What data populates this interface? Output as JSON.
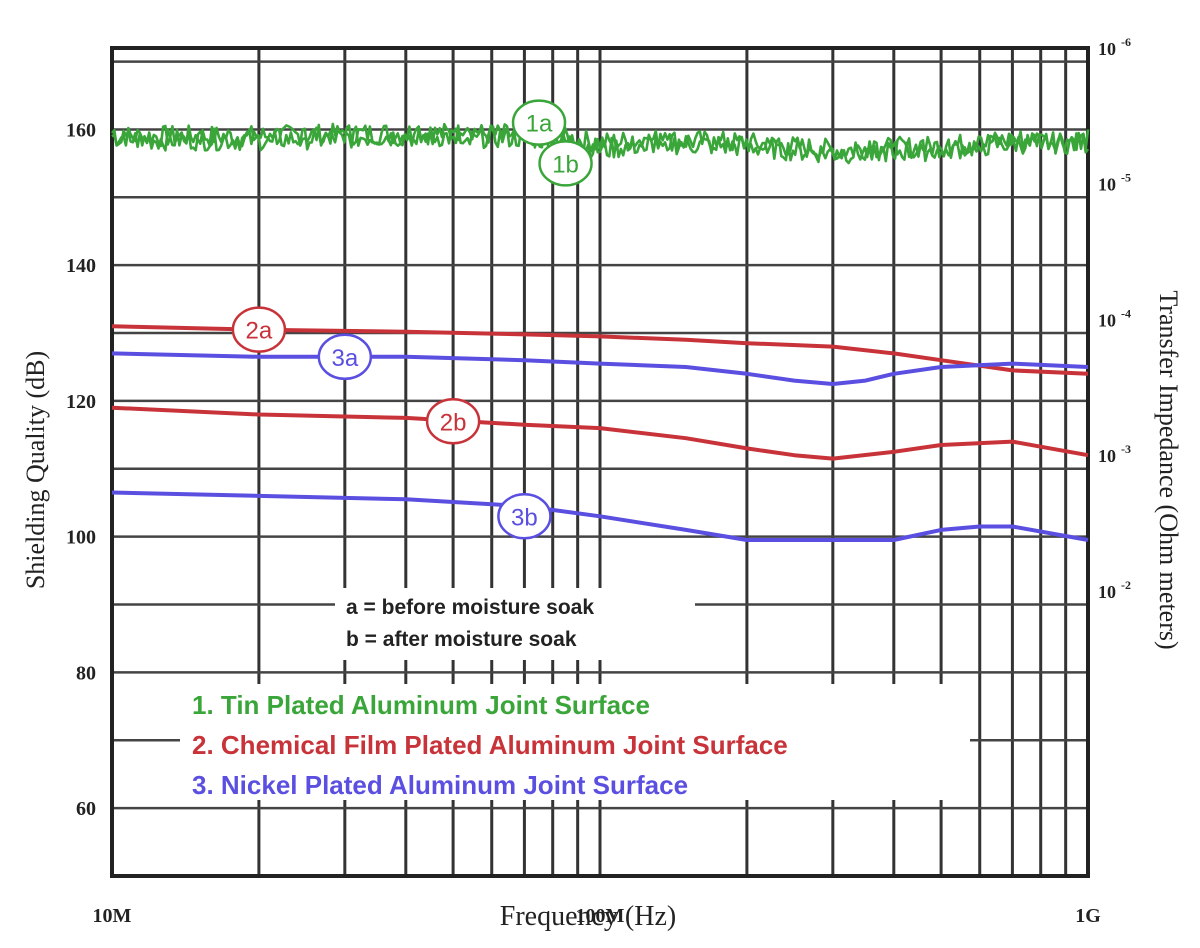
{
  "chart_data": {
    "type": "line",
    "title": "",
    "xlabel": "Frequency (Hz)",
    "ylabel": "Shielding Quality (dB)",
    "y2label": "Transfer Impedance (Ohm meters)",
    "xscale": "log",
    "xlim": [
      10000000,
      1000000000
    ],
    "ylim": [
      50,
      172
    ],
    "grid": true,
    "x_tick_values": [
      10000000,
      100000000,
      1000000000
    ],
    "x_tick_labels": [
      "10M",
      "100M",
      "1G"
    ],
    "y_ticks": [
      60,
      80,
      100,
      120,
      140,
      160
    ],
    "y2_ticks": [
      {
        "base": "10",
        "exp": "-6",
        "y": 172
      },
      {
        "base": "10",
        "exp": "-5",
        "y": 152
      },
      {
        "base": "10",
        "exp": "-4",
        "y": 132
      },
      {
        "base": "10",
        "exp": "-3",
        "y": 112
      },
      {
        "base": "10",
        "exp": "-2",
        "y": 92
      }
    ],
    "notes": [
      "a = before moisture soak",
      "b = after moisture soak"
    ],
    "legend": [
      {
        "text": "1. Tin Plated Aluminum Joint Surface",
        "color": "#3aa63a"
      },
      {
        "text": "2. Chemical Film Plated Aluminum Joint Surface",
        "color": "#c8333a"
      },
      {
        "text": "3. Nickel Plated Aluminum Joint Surface",
        "color": "#5a4fe0"
      }
    ],
    "series": [
      {
        "label": "1a",
        "color": "#3aa63a",
        "noisy": true,
        "x": [
          10000000,
          20000000,
          40000000,
          70000000,
          90000000,
          100000000,
          130000000,
          200000000,
          300000000,
          500000000,
          700000000,
          1000000000
        ],
        "y": [
          159,
          159,
          159.5,
          159.2,
          158.5,
          158,
          158.5,
          158,
          157,
          157.5,
          158.5,
          158.5
        ],
        "label_at": [
          75000000,
          161
        ]
      },
      {
        "label": "1b",
        "color": "#3aa63a",
        "noisy": true,
        "x": [
          10000000,
          20000000,
          40000000,
          70000000,
          90000000,
          100000000,
          130000000,
          200000000,
          300000000,
          500000000,
          700000000,
          1000000000
        ],
        "y": [
          158.5,
          158.5,
          159,
          158.8,
          158,
          157,
          158,
          157.5,
          156.5,
          157,
          158,
          158
        ],
        "label_at": [
          85000000,
          155
        ]
      },
      {
        "label": "2a",
        "color": "#c8333a",
        "x": [
          10000000,
          20000000,
          40000000,
          70000000,
          100000000,
          150000000,
          200000000,
          300000000,
          400000000,
          500000000,
          700000000,
          1000000000
        ],
        "y": [
          131,
          130.5,
          130.2,
          129.8,
          129.5,
          129,
          128.5,
          128,
          127,
          126,
          124.5,
          124
        ],
        "label_at": [
          20000000,
          130.5
        ]
      },
      {
        "label": "2b",
        "color": "#c8333a",
        "x": [
          10000000,
          20000000,
          40000000,
          70000000,
          100000000,
          150000000,
          200000000,
          250000000,
          300000000,
          400000000,
          500000000,
          700000000,
          1000000000
        ],
        "y": [
          119,
          118,
          117.5,
          116.5,
          116,
          114.5,
          113,
          112,
          111.5,
          112.5,
          113.5,
          114,
          112
        ],
        "label_at": [
          50000000,
          117
        ]
      },
      {
        "label": "3a",
        "color": "#5a4fe0",
        "x": [
          10000000,
          20000000,
          40000000,
          70000000,
          100000000,
          150000000,
          200000000,
          250000000,
          300000000,
          350000000,
          400000000,
          500000000,
          700000000,
          1000000000
        ],
        "y": [
          127,
          126.5,
          126.5,
          126,
          125.5,
          125,
          124,
          123,
          122.5,
          123,
          124,
          125,
          125.5,
          125
        ],
        "label_at": [
          30000000,
          126.5
        ]
      },
      {
        "label": "3b",
        "color": "#5a4fe0",
        "x": [
          10000000,
          20000000,
          40000000,
          70000000,
          100000000,
          150000000,
          200000000,
          300000000,
          400000000,
          500000000,
          600000000,
          700000000,
          1000000000
        ],
        "y": [
          106.5,
          106,
          105.5,
          104.5,
          103,
          101,
          99.5,
          99.5,
          99.5,
          101,
          101.5,
          101.5,
          99.5
        ],
        "label_at": [
          70000000,
          103
        ]
      }
    ]
  }
}
